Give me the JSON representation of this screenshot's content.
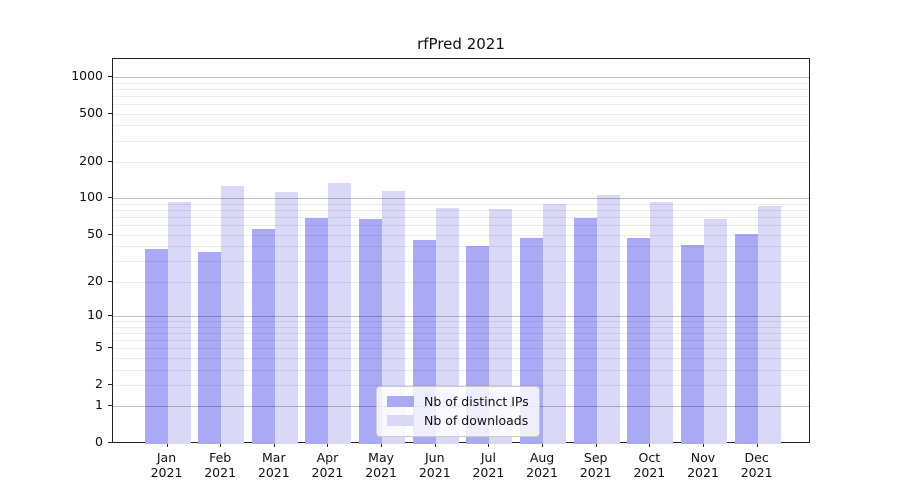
{
  "chart_data": {
    "type": "bar",
    "title": "rfPred 2021",
    "x": {
      "months": [
        "Jan",
        "Feb",
        "Mar",
        "Apr",
        "May",
        "Jun",
        "Jul",
        "Aug",
        "Sep",
        "Oct",
        "Nov",
        "Dec"
      ],
      "year_label": "2021"
    },
    "series": [
      {
        "name": "Nb of distinct IPs",
        "color": "#a9a9f5",
        "values": [
          38,
          36,
          56,
          69,
          67,
          45,
          40,
          47,
          69,
          47,
          41,
          51
        ]
      },
      {
        "name": "Nb of downloads",
        "color": "#d9d9f7",
        "values": [
          94,
          126,
          113,
          133,
          116,
          84,
          82,
          90,
          106,
          93,
          67,
          87
        ]
      }
    ],
    "y_axis": {
      "scale": "log1p",
      "ticks": [
        0,
        1,
        2,
        5,
        10,
        20,
        50,
        100,
        200,
        500,
        1000
      ],
      "ylim": [
        0,
        1400
      ]
    },
    "legend": {
      "position": "lower-center"
    },
    "grid": {
      "horizontal": true,
      "minor_log_lines": true
    }
  }
}
